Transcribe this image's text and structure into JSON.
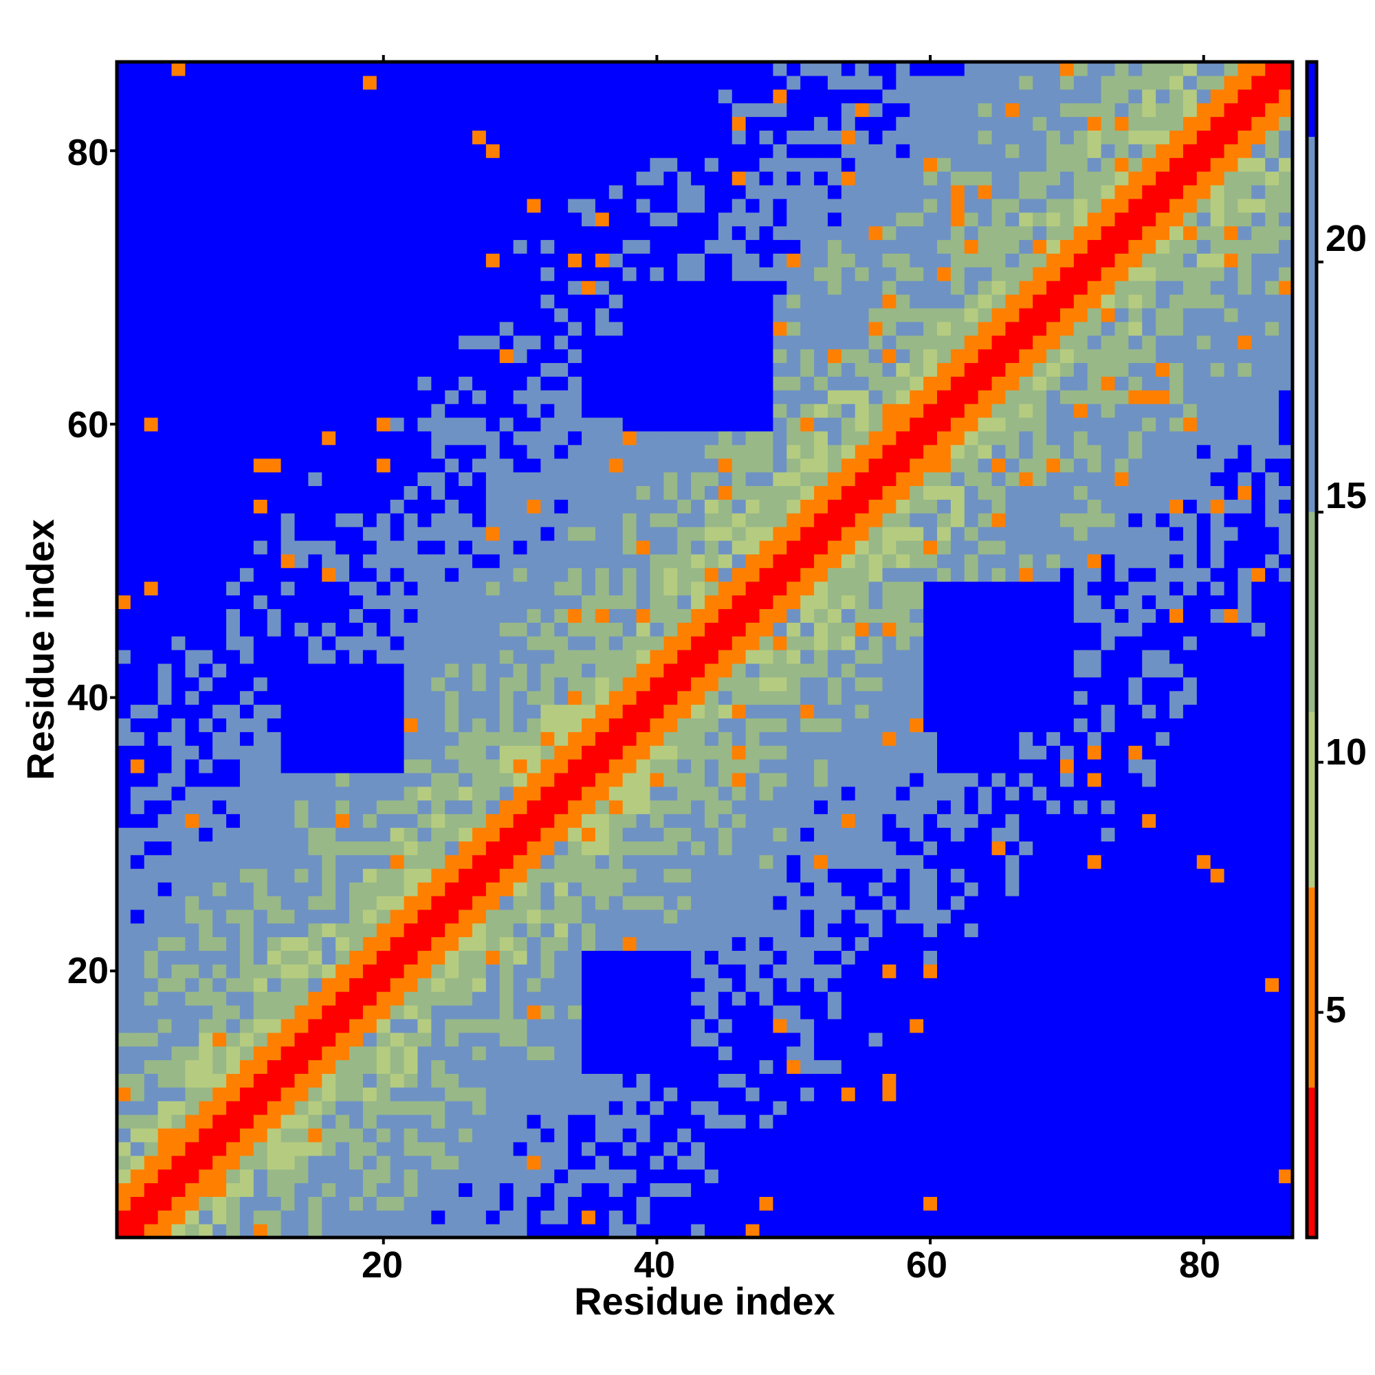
{
  "chart_data": {
    "type": "heatmap",
    "title": "",
    "xlabel": "Residue index",
    "ylabel": "Residue index",
    "n_residues": 86,
    "xlim": [
      0.5,
      86.5
    ],
    "ylim": [
      0.5,
      86.5
    ],
    "x_ticks": [
      20,
      40,
      60,
      80
    ],
    "y_ticks": [
      20,
      40,
      60,
      80
    ],
    "colorbar": {
      "range": [
        0.5,
        24
      ],
      "ticks": [
        5,
        10,
        15,
        20
      ],
      "bands": [
        {
          "from": 0.5,
          "to": 3.5,
          "color": "#ff0000"
        },
        {
          "from": 3.5,
          "to": 7.5,
          "color": "#ff8000"
        },
        {
          "from": 7.5,
          "to": 11,
          "color": "#b5cc80"
        },
        {
          "from": 11,
          "to": 15,
          "color": "#98b888"
        },
        {
          "from": 15,
          "to": 22.5,
          "color": "#6f92c4"
        },
        {
          "from": 22.5,
          "to": 24,
          "color": "#0000ff"
        }
      ]
    },
    "value_description": "Inter-residue distance map: symmetric matrix, near-zero on the diagonal, increasing with separation; saturated blue regions above cutoff",
    "blue_blocks": [
      {
        "residues_i": [
          38,
          48
        ],
        "residues_j": [
          60,
          70
        ],
        "value": 24
      },
      {
        "residues_i": [
          61,
          66
        ],
        "residues_j": [
          35,
          45
        ],
        "value": 24
      },
      {
        "residues_i": [
          13,
          21
        ],
        "residues_j": [
          35,
          42
        ],
        "value": 24
      },
      {
        "residues_i": [
          63,
          84
        ],
        "residues_j": [
          1,
          20
        ],
        "value": 24
      }
    ],
    "grid": false,
    "legend": "colorbar-right"
  },
  "labels": {
    "x_axis_title": "Residue index",
    "y_axis_title": "Residue index",
    "x_tick_20": "20",
    "x_tick_40": "40",
    "x_tick_60": "60",
    "x_tick_80": "80",
    "y_tick_20": "20",
    "y_tick_40": "40",
    "y_tick_60": "60",
    "y_tick_80": "80",
    "cb_tick_5": "5",
    "cb_tick_10": "10",
    "cb_tick_15": "15",
    "cb_tick_20": "20"
  }
}
